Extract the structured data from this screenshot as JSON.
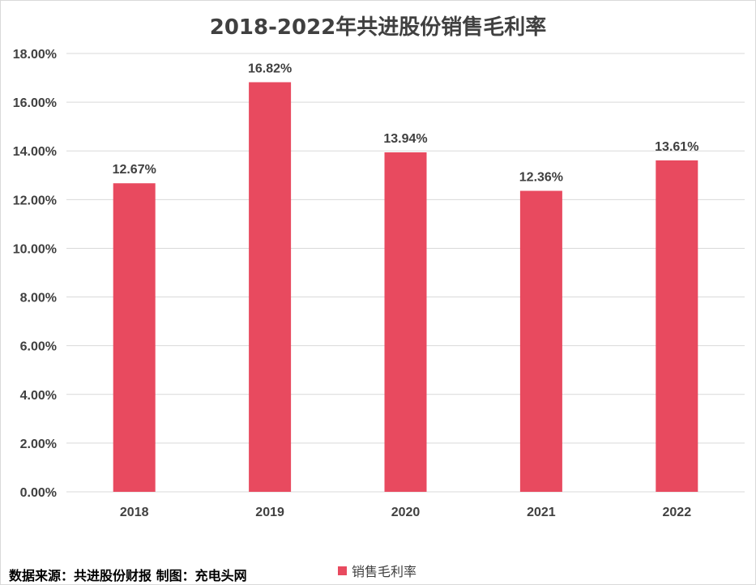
{
  "chart_data": {
    "type": "bar",
    "title": "2018-2022年共进股份销售毛利率",
    "categories": [
      "2018",
      "2019",
      "2020",
      "2021",
      "2022"
    ],
    "series": [
      {
        "name": "销售毛利率",
        "values": [
          12.67,
          16.82,
          13.94,
          12.36,
          13.61
        ],
        "labels": [
          "12.67%",
          "16.82%",
          "13.94%",
          "12.36%",
          "13.61%"
        ],
        "color": "#E84A5F"
      }
    ],
    "y_ticks": [
      "0.00%",
      "2.00%",
      "4.00%",
      "6.00%",
      "8.00%",
      "10.00%",
      "12.00%",
      "14.00%",
      "16.00%",
      "18.00%"
    ],
    "ylim": [
      0,
      18
    ],
    "grid": true,
    "legend_position": "bottom"
  },
  "source_note": "数据来源：共进股份财报  制图：充电头网",
  "colors": {
    "bar": "#E84A5F",
    "grid": "#d9d9d9",
    "text": "#404040"
  }
}
